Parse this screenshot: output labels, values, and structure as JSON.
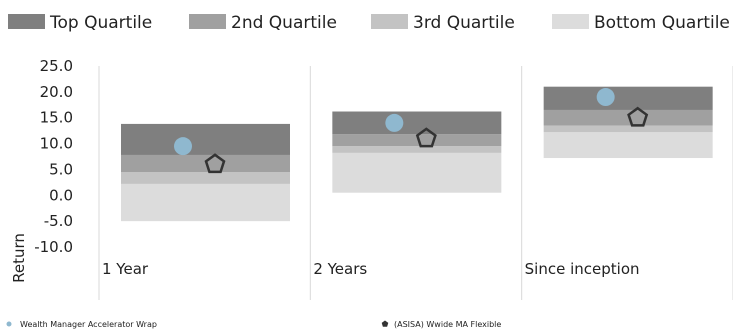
{
  "chart_data": {
    "type": "bar",
    "subtype": "floating-stacked-quartile-ranges-with-markers",
    "title": "",
    "xlabel": "",
    "ylabel": "Return",
    "ylim": [
      -10,
      25
    ],
    "yticks": [
      -10,
      -5,
      0,
      5,
      10,
      15,
      20,
      25
    ],
    "ytick_labels": [
      "-10.0",
      "-5.0",
      "0.0",
      "5.0",
      "10.0",
      "15.0",
      "20.0",
      "25.0"
    ],
    "grid": "vertical separators between categories",
    "categories": [
      "1 Year",
      "2 Years",
      "Since inception"
    ],
    "quartile_legend": {
      "placement": "top",
      "items": [
        {
          "key": "top",
          "label": "Top Quartile",
          "color": "#7f7f7f"
        },
        {
          "key": "second",
          "label": "2nd Quartile",
          "color": "#a0a0a0"
        },
        {
          "key": "third",
          "label": "3rd Quartile",
          "color": "#c3c3c3"
        },
        {
          "key": "bottom",
          "label": "Bottom Quartile",
          "color": "#dcdcdc"
        }
      ]
    },
    "ranges": [
      {
        "category": "1 Year",
        "bottom": [
          -5.0,
          2.2
        ],
        "third": [
          2.2,
          4.5
        ],
        "second": [
          4.5,
          7.8
        ],
        "top": [
          7.8,
          13.8
        ]
      },
      {
        "category": "2 Years",
        "bottom": [
          0.5,
          8.2
        ],
        "third": [
          8.2,
          9.5
        ],
        "second": [
          9.5,
          11.8
        ],
        "top": [
          11.8,
          16.2
        ]
      },
      {
        "category": "Since inception",
        "bottom": [
          7.2,
          12.2
        ],
        "third": [
          12.2,
          13.5
        ],
        "second": [
          13.5,
          16.5
        ],
        "top": [
          16.5,
          21.0
        ]
      }
    ],
    "series": [
      {
        "name": "Wealth Manager Accelerator Wrap",
        "marker": "circle",
        "color": "#8fb8cf",
        "values": [
          9.5,
          14.0,
          19.0
        ]
      },
      {
        "name": "(ASISA) Wwide MA Flexible",
        "marker": "pentagon",
        "color": "#333333",
        "values": [
          6.0,
          11.0,
          15.0
        ]
      }
    ],
    "bottom_legend": {
      "placement": "bottom"
    }
  }
}
